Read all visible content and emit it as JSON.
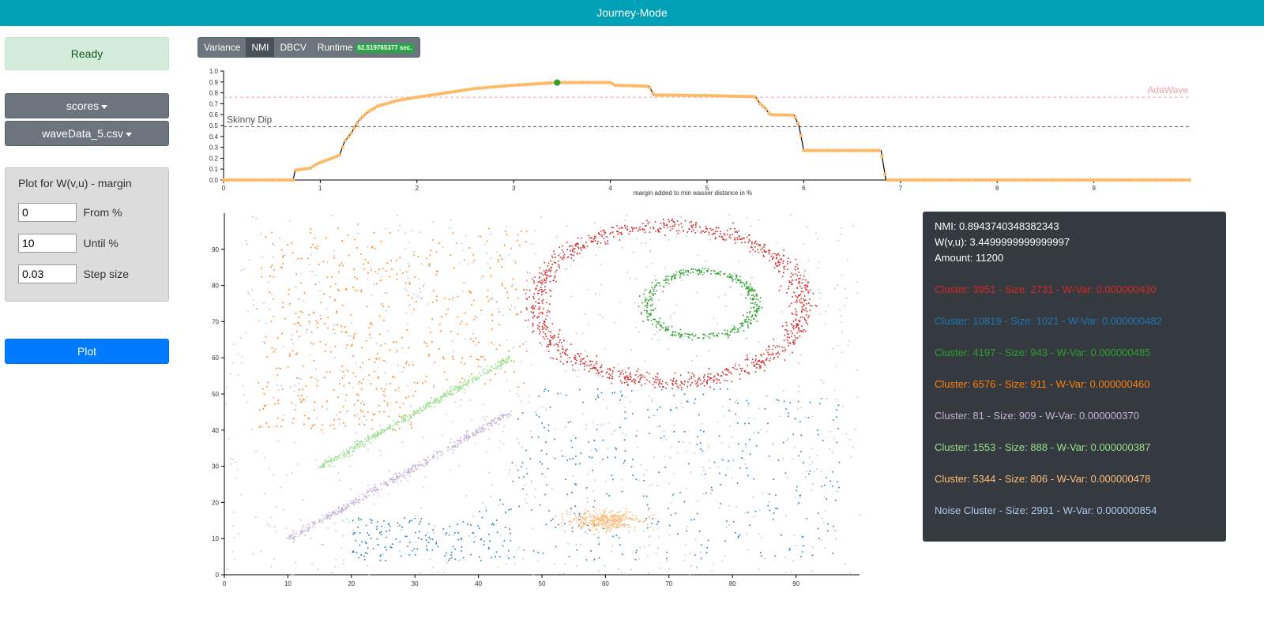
{
  "app": {
    "title": "Journey-Mode"
  },
  "sidebar": {
    "status": "Ready",
    "metric_dropdown": "scores",
    "file_dropdown": "waveData_5.csv",
    "plot_panel": {
      "title": "Plot for W(v,u) - margin",
      "from": {
        "value": "0",
        "label": "From %"
      },
      "until": {
        "value": "10",
        "label": "Until %"
      },
      "step": {
        "value": "0.03",
        "label": "Step size"
      }
    },
    "plot_button": "Plot"
  },
  "tabs": {
    "variance": "Variance",
    "nmi": "NMI",
    "dbcv": "DBCV",
    "runtime": "Runtime",
    "runtime_badge": "62.519765377 sec.",
    "active": "NMI"
  },
  "info": {
    "nmi": "NMI: 0.8943740348382343",
    "wvu": "W(v,u): 3.4499999999999997",
    "amount": "Amount: 11200",
    "clusters": [
      {
        "text": "Cluster: 3951 - Size: 2731 - W-Var: 0.000000430",
        "color": "#d62728"
      },
      {
        "text": "Cluster: 10819 - Size: 1021 - W-Var: 0.000000482",
        "color": "#1f77b4"
      },
      {
        "text": "Cluster: 4197 - Size: 943 - W-Var: 0.000000485",
        "color": "#2ca02c"
      },
      {
        "text": "Cluster: 6576 - Size: 911 - W-Var: 0.000000460",
        "color": "#ff7f0e"
      },
      {
        "text": "Cluster: 81 - Size: 909 - W-Var: 0.000000370",
        "color": "#c5b0d5"
      },
      {
        "text": "Cluster: 1553 - Size: 888 - W-Var: 0.000000387",
        "color": "#98df8a"
      },
      {
        "text": "Cluster: 5344 - Size: 806 - W-Var: 0.000000478",
        "color": "#ffbb78"
      },
      {
        "text": "Noise Cluster - Size: 2991 - W-Var: 0.000000854",
        "color": "#aec7e8"
      }
    ]
  },
  "chart_data": [
    {
      "type": "line",
      "title": "",
      "xlabel": "margin added to min wasser distance in %",
      "ylabel": "",
      "xlim": [
        0,
        10
      ],
      "ylim": [
        0,
        1
      ],
      "x_ticks": [
        "0",
        "1",
        "2",
        "3",
        "4",
        "5",
        "6",
        "7",
        "8",
        "9"
      ],
      "y_ticks": [
        "0.0",
        "0.1",
        "0.2",
        "0.3",
        "0.4",
        "0.5",
        "0.6",
        "0.7",
        "0.8",
        "0.9",
        "1.0"
      ],
      "reference_lines": [
        {
          "label": "AdaWave",
          "y": 0.76,
          "color": "#f4a3ad"
        },
        {
          "label": "Skinny Dip",
          "y": 0.49,
          "color": "#555555"
        }
      ],
      "highlight_point": {
        "x": 3.45,
        "y": 0.894,
        "color": "#2ca02c"
      },
      "series": [
        {
          "color": "#fdb863",
          "points": [
            [
              0,
              0
            ],
            [
              0.72,
              0
            ],
            [
              0.74,
              0.09
            ],
            [
              0.9,
              0.11
            ],
            [
              0.97,
              0.15
            ],
            [
              1.0,
              0.16
            ],
            [
              1.15,
              0.21
            ],
            [
              1.2,
              0.23
            ],
            [
              1.25,
              0.35
            ],
            [
              1.32,
              0.43
            ],
            [
              1.4,
              0.55
            ],
            [
              1.5,
              0.63
            ],
            [
              1.6,
              0.68
            ],
            [
              1.8,
              0.73
            ],
            [
              2.0,
              0.76
            ],
            [
              2.3,
              0.8
            ],
            [
              2.6,
              0.84
            ],
            [
              3.0,
              0.87
            ],
            [
              3.45,
              0.894
            ],
            [
              4.0,
              0.895
            ],
            [
              4.05,
              0.87
            ],
            [
              4.4,
              0.86
            ],
            [
              4.45,
              0.78
            ],
            [
              5.0,
              0.775
            ],
            [
              5.5,
              0.765
            ],
            [
              5.55,
              0.7
            ],
            [
              5.6,
              0.66
            ],
            [
              5.65,
              0.6
            ],
            [
              5.9,
              0.595
            ],
            [
              5.95,
              0.5
            ],
            [
              6.0,
              0.27
            ],
            [
              6.8,
              0.27
            ],
            [
              6.85,
              0.0
            ],
            [
              10.0,
              0.0
            ]
          ]
        }
      ]
    },
    {
      "type": "scatter",
      "title": "",
      "xlabel": "",
      "ylabel": "",
      "xlim": [
        0,
        100
      ],
      "ylim": [
        0,
        100
      ],
      "x_ticks": [
        "0",
        "10",
        "20",
        "30",
        "40",
        "50",
        "60",
        "70",
        "80",
        "90"
      ],
      "y_ticks": [
        "0",
        "10",
        "20",
        "30",
        "40",
        "50",
        "60",
        "70",
        "80",
        "90"
      ],
      "clusters": [
        {
          "name": "Noise Cluster",
          "color": "#aec7e8",
          "shape": "uniform",
          "count": 900,
          "x": [
            0,
            100
          ],
          "y": [
            0,
            100
          ]
        },
        {
          "name": "3951",
          "color": "#d62728",
          "shape": "ring",
          "count": 1100,
          "cx": 70,
          "cy": 75,
          "rx": 21,
          "ry": 21.5,
          "width": 2
        },
        {
          "name": "4197",
          "color": "#2ca02c",
          "shape": "ring",
          "count": 420,
          "cx": 75,
          "cy": 75,
          "rx": 8.5,
          "ry": 9,
          "width": 1.1
        },
        {
          "name": "6576",
          "color": "#ff7f0e",
          "shape": "blob",
          "count": 520,
          "x": [
            5,
            48
          ],
          "y": [
            40,
            96
          ]
        },
        {
          "name": "1553",
          "color": "#98df8a",
          "shape": "line",
          "count": 420,
          "from": [
            15,
            30
          ],
          "to": [
            45,
            60
          ],
          "width": 0.8
        },
        {
          "name": "81",
          "color": "#c5b0d5",
          "shape": "line",
          "count": 420,
          "from": [
            10,
            10
          ],
          "to": [
            45,
            45
          ],
          "width": 0.8
        },
        {
          "name": "10819",
          "color": "#1f77b4",
          "shape": "region",
          "count": 520,
          "x": [
            20,
            97
          ],
          "y": [
            4,
            52
          ]
        },
        {
          "name": "5344",
          "color": "#ffbb78",
          "shape": "ellipse",
          "count": 360,
          "cx": 60,
          "cy": 15,
          "rx": 6,
          "ry": 3
        }
      ]
    }
  ]
}
